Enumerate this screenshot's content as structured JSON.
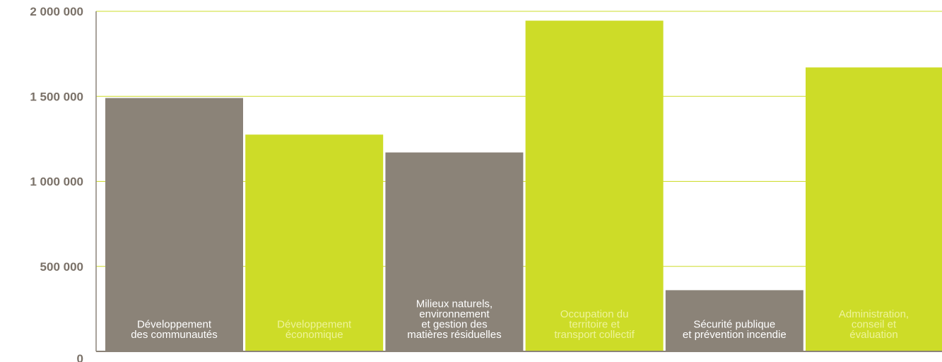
{
  "chart_data": {
    "type": "bar",
    "categories": [
      [
        "Développement",
        "des communautés"
      ],
      [
        "Développement",
        "économique"
      ],
      [
        "Milieux naturels,",
        "environnement",
        "et gestion des",
        "matières résiduelles"
      ],
      [
        "Occupation du",
        "territoire et",
        "transport collectif"
      ],
      [
        "Sécurité publique",
        "et prévention incendie"
      ],
      [
        "Administration,",
        "conseil et",
        "évaluation"
      ]
    ],
    "values": [
      1490000,
      1275000,
      1170000,
      1945000,
      360000,
      1670000
    ],
    "bar_colors": [
      "#8b8378",
      "#cddc28",
      "#8b8378",
      "#cddc28",
      "#8b8378",
      "#cddc28"
    ],
    "label_colors": [
      "#ffffff",
      "#eef39a",
      "#ffffff",
      "#eef39a",
      "#ffffff",
      "#eef39a"
    ],
    "ylim": [
      0,
      2000000
    ],
    "yticks": [
      0,
      500000,
      1000000,
      1500000,
      2000000
    ],
    "ytick_labels": [
      "0",
      "500 000",
      "1 000 000",
      "1 500 000",
      "2 000 000"
    ],
    "gridline_color": "#cddc28",
    "axis_color": "#8b8378",
    "grid": true,
    "title": "",
    "xlabel": "",
    "ylabel": ""
  }
}
